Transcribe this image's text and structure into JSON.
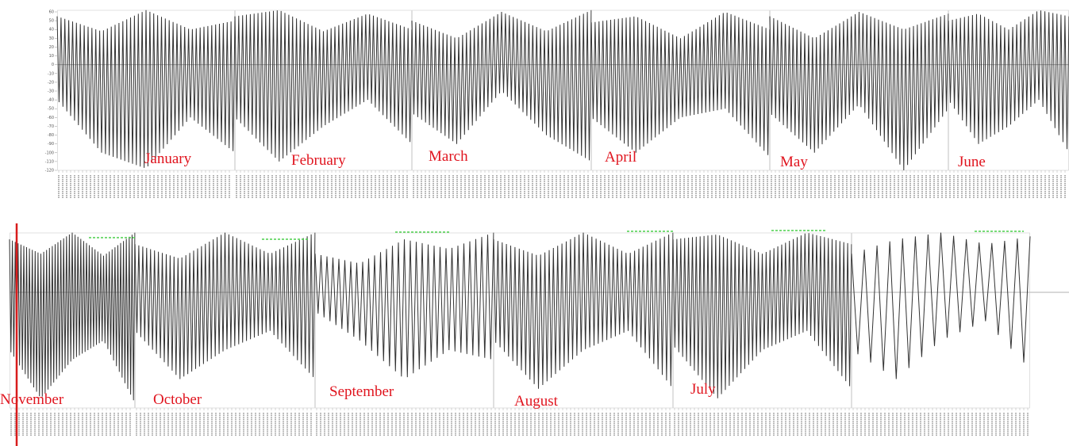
{
  "colors": {
    "signal": "#333333",
    "label": "#e0141e",
    "axis": "#999999",
    "panel_border": "#cccccc",
    "marker_line": "#d81c1c",
    "green_tag": "#4ccf4c"
  },
  "chart_data": [
    {
      "type": "line",
      "layout_row": "top",
      "yticks": [
        "60",
        "50",
        "40",
        "30",
        "20",
        "10",
        "0",
        "-10",
        "-20",
        "-30",
        "-40",
        "-50",
        "-60",
        "-70",
        "-80",
        "-90",
        "-100",
        "-110",
        "-120"
      ],
      "ylim": [
        -120,
        60
      ],
      "grid": false,
      "panels": [
        {
          "label": "January",
          "cycles": 46,
          "upper": [
            55,
            38,
            62,
            40,
            50
          ],
          "lower": [
            -40,
            -100,
            -118,
            -60,
            -100
          ]
        },
        {
          "label": "February",
          "cycles": 46,
          "upper": [
            55,
            62,
            38,
            58,
            40
          ],
          "lower": [
            -60,
            -110,
            -70,
            -40,
            -90
          ]
        },
        {
          "label": "March",
          "cycles": 46,
          "upper": [
            50,
            30,
            60,
            38,
            62
          ],
          "lower": [
            -55,
            -90,
            -30,
            -80,
            -110
          ]
        },
        {
          "label": "April",
          "cycles": 46,
          "upper": [
            48,
            55,
            30,
            60,
            40
          ],
          "lower": [
            -60,
            -100,
            -60,
            -50,
            -105
          ]
        },
        {
          "label": "May",
          "cycles": 46,
          "upper": [
            55,
            30,
            60,
            40,
            58
          ],
          "lower": [
            -55,
            -100,
            -45,
            -120,
            -50
          ]
        },
        {
          "label": "June",
          "cycles": 30,
          "upper": [
            50,
            58,
            40,
            62,
            55
          ],
          "lower": [
            -40,
            -90,
            -70,
            -40,
            -100
          ]
        }
      ]
    },
    {
      "type": "line",
      "layout_row": "bottom",
      "ylim": [
        -120,
        60
      ],
      "grid": false,
      "panels": [
        {
          "label": "November",
          "cycles": 44,
          "upper": [
            55,
            40,
            62,
            38,
            62
          ],
          "lower": [
            -60,
            -110,
            -70,
            -50,
            -115
          ]
        },
        {
          "label": "October",
          "cycles": 46,
          "upper": [
            50,
            35,
            62,
            40,
            62
          ],
          "lower": [
            -40,
            -90,
            -60,
            -40,
            -90
          ]
        },
        {
          "label": "September",
          "cycles": 30,
          "upper": [
            40,
            30,
            55,
            45,
            62
          ],
          "lower": [
            -20,
            -50,
            -90,
            -60,
            -70
          ]
        },
        {
          "label": "August",
          "cycles": 42,
          "upper": [
            55,
            38,
            62,
            40,
            62
          ],
          "lower": [
            -50,
            -100,
            -60,
            -40,
            -100
          ]
        },
        {
          "label": "July",
          "cycles": 46,
          "upper": [
            55,
            60,
            40,
            62,
            50
          ],
          "lower": [
            -55,
            -110,
            -60,
            -40,
            -100
          ]
        },
        {
          "label": "",
          "cycles": 14,
          "upper": [
            40,
            55,
            62,
            50,
            58
          ],
          "lower": [
            -60,
            -90,
            -50,
            -30,
            -80
          ]
        }
      ]
    }
  ]
}
